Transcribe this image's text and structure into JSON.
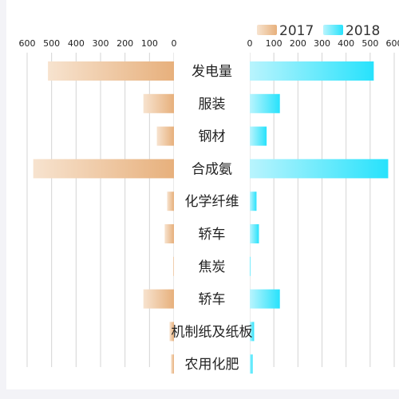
{
  "chart_data": {
    "type": "bar",
    "orientation": "horizontal-butterfly",
    "categories": [
      "发电量",
      "服装",
      "钢材",
      "合成氨",
      "化学纤维",
      "轿车",
      "焦炭",
      "轿车",
      "机制纸及纸板",
      "农用化肥"
    ],
    "series": [
      {
        "name": "2017",
        "side": "left",
        "values": [
          515,
          125,
          70,
          575,
          28,
          38,
          3,
          125,
          18,
          12
        ],
        "gradient_from": "#f7e3cf",
        "gradient_to": "#e7b07c"
      },
      {
        "name": "2018",
        "side": "right",
        "values": [
          515,
          125,
          70,
          575,
          28,
          38,
          3,
          125,
          18,
          12
        ],
        "gradient_from": "#b9f4fd",
        "gradient_to": "#27e2fc"
      }
    ],
    "left_axis": {
      "ticks": [
        "600",
        "500",
        "400",
        "300",
        "200",
        "100",
        "0"
      ],
      "range": [
        0,
        600
      ]
    },
    "right_axis": {
      "ticks": [
        "0",
        "100",
        "200",
        "300",
        "400",
        "500",
        "600"
      ],
      "range": [
        0,
        600
      ]
    },
    "grid": true,
    "legend": "top-right"
  }
}
